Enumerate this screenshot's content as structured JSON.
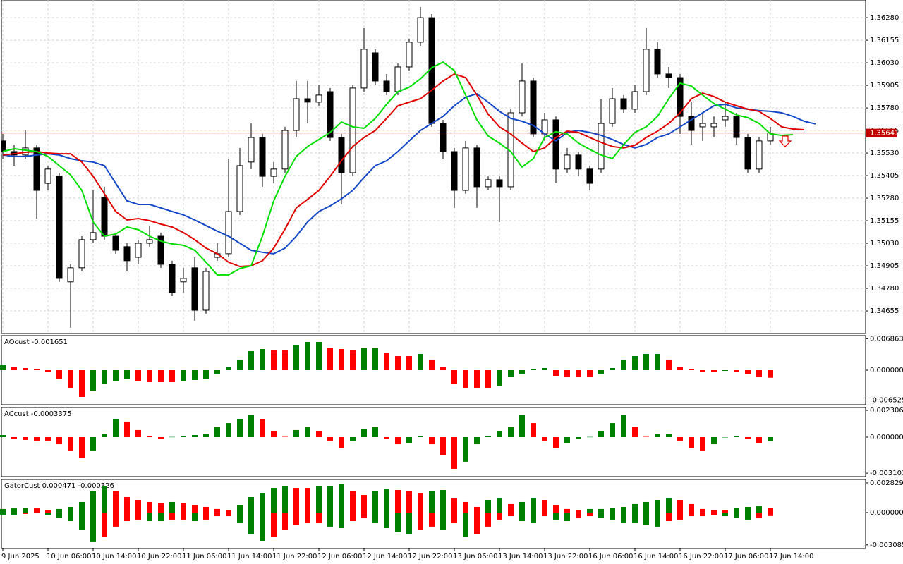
{
  "chart_data": [
    {
      "type": "candlestick",
      "categories": [
        "9 Jun 2025",
        null,
        null,
        null,
        "10 Jun 06:00",
        null,
        null,
        null,
        "10 Jun 14:00",
        null,
        null,
        null,
        "10 Jun 22:00",
        null,
        null,
        null,
        "11 Jun 06:00",
        null,
        null,
        null,
        "11 Jun 14:00",
        null,
        null,
        null,
        "11 Jun 22:00",
        null,
        null,
        null,
        "12 Jun 06:00",
        null,
        null,
        null,
        "12 Jun 14:00",
        null,
        null,
        null,
        "12 Jun 22:00",
        null,
        null,
        null,
        "13 Jun 06:00",
        null,
        null,
        null,
        "13 Jun 14:00",
        null,
        null,
        null,
        "13 Jun 22:00",
        null,
        null,
        null,
        "16 Jun 06:00",
        null,
        null,
        null,
        "16 Jun 14:00",
        null,
        null,
        null,
        "16 Jun 22:00",
        null,
        null,
        null,
        "17 Jun 06:00",
        null,
        null,
        null,
        "17 Jun 14:00",
        null,
        null,
        null,
        null
      ],
      "open": [
        1.35597,
        1.35538,
        1.35519,
        1.35558,
        1.35362,
        1.35401,
        1.34816,
        1.34894,
        1.3505,
        1.35284,
        1.35069,
        1.35011,
        1.34952,
        1.3503,
        1.35069,
        1.34913,
        1.34816,
        1.34894,
        1.34659,
        1.34952,
        1.34972,
        1.35206,
        1.3548,
        1.35616,
        1.35401,
        1.35441,
        1.35655,
        1.35831,
        1.35812,
        1.3587,
        1.35616,
        1.35421,
        1.3589,
        1.36085,
        1.35929,
        1.3587,
        1.36007,
        1.36144,
        1.3628,
        1.35694,
        1.35538,
        1.35323,
        1.35558,
        1.35343,
        1.35382,
        1.35343,
        1.35753,
        1.35929,
        1.35636,
        1.35714,
        1.35441,
        1.35519,
        1.35441,
        1.35441,
        1.35694,
        1.35831,
        1.35773,
        1.3587,
        1.36105,
        1.35968,
        1.35948,
        1.35733,
        1.35675,
        1.35675,
        1.35714,
        1.35733,
        1.35616,
        1.35441,
        1.35597,
        null,
        null,
        null,
        null
      ],
      "high": [
        1.35636,
        1.35577,
        1.35655,
        1.35577,
        1.3546,
        1.35421,
        1.34913,
        1.35069,
        1.35323,
        1.35343,
        1.35089,
        1.3503,
        1.3505,
        1.35128,
        1.35089,
        1.34933,
        1.34894,
        1.34952,
        1.34894,
        1.3503,
        1.35499,
        1.35558,
        1.35694,
        1.35636,
        1.3548,
        1.35675,
        1.35929,
        1.35929,
        1.35909,
        1.3589,
        1.35636,
        1.35909,
        1.36222,
        1.36105,
        1.35968,
        1.36026,
        1.36163,
        1.36339,
        1.363,
        1.35714,
        1.35558,
        1.35597,
        1.35577,
        1.35401,
        1.35401,
        1.35773,
        1.36026,
        1.35948,
        1.35753,
        1.35733,
        1.35558,
        1.35538,
        1.3546,
        1.35831,
        1.3589,
        1.35851,
        1.35909,
        1.36222,
        1.36144,
        1.36007,
        1.35968,
        1.35812,
        1.35753,
        1.35733,
        1.35812,
        1.35753,
        1.35636,
        1.35616,
        1.35675,
        null,
        null,
        null,
        null
      ],
      "low": [
        1.35499,
        1.3546,
        1.35499,
        1.35167,
        1.35323,
        1.34816,
        1.34562,
        1.34874,
        1.3503,
        1.3505,
        1.34972,
        1.34874,
        1.34913,
        1.35011,
        1.34894,
        1.34737,
        1.34757,
        1.34601,
        1.3464,
        1.34933,
        1.34952,
        1.35187,
        1.35441,
        1.35343,
        1.35362,
        1.35421,
        1.35616,
        1.35694,
        1.35792,
        1.35597,
        1.35245,
        1.35401,
        1.3587,
        1.35909,
        1.35851,
        1.35851,
        1.35987,
        1.36124,
        1.35675,
        1.35499,
        1.35226,
        1.35304,
        1.35226,
        1.35323,
        1.35148,
        1.35323,
        1.35733,
        1.35616,
        1.35597,
        1.35362,
        1.35421,
        1.35401,
        1.35323,
        1.35421,
        1.35675,
        1.35753,
        1.35753,
        1.35851,
        1.35948,
        1.3589,
        1.35636,
        1.35577,
        1.35597,
        1.35616,
        1.35675,
        1.35577,
        1.35421,
        1.35421,
        1.35577,
        null,
        null,
        null,
        null
      ],
      "close": [
        1.35538,
        1.35519,
        1.35558,
        1.35323,
        1.35441,
        1.34835,
        1.34894,
        1.3505,
        1.35089,
        1.35069,
        1.34991,
        1.34933,
        1.3503,
        1.3505,
        1.34913,
        1.34757,
        1.34835,
        1.34659,
        1.34874,
        1.34972,
        1.35206,
        1.3546,
        1.35616,
        1.35401,
        1.35441,
        1.35655,
        1.35831,
        1.35812,
        1.35851,
        1.35616,
        1.35421,
        1.3589,
        1.36105,
        1.35929,
        1.3587,
        1.36007,
        1.36144,
        1.3628,
        1.35694,
        1.35538,
        1.35323,
        1.35558,
        1.35343,
        1.35382,
        1.35343,
        1.35753,
        1.35929,
        1.35636,
        1.35714,
        1.35441,
        1.35519,
        1.35441,
        1.35362,
        1.35694,
        1.35831,
        1.35773,
        1.3587,
        1.36105,
        1.35968,
        1.35948,
        1.35733,
        1.35655,
        1.35694,
        1.35694,
        1.35733,
        1.35616,
        1.35441,
        1.35597,
        1.35641,
        null,
        null,
        null,
        null
      ],
      "up_color": "#ffffff",
      "down_color": "#000000",
      "series": [
        {
          "color": "#1448c8",
          "values": [
            1.35519,
            1.35511,
            1.35511,
            1.35519,
            1.35526,
            1.35519,
            1.35499,
            1.35487,
            1.3548,
            1.3546,
            1.35362,
            1.35265,
            1.35245,
            1.35245,
            1.35226,
            1.35206,
            1.35187,
            1.35159,
            1.35128,
            1.35097,
            1.35069,
            1.3503,
            1.34991,
            1.3498,
            1.34972,
            1.35003,
            1.35069,
            1.35148,
            1.35206,
            1.35237,
            1.35276,
            1.35323,
            1.35394,
            1.3546,
            1.35487,
            1.35538,
            1.35597,
            1.35655,
            1.35694,
            1.35733,
            1.35792,
            1.35839,
            1.35858,
            1.35812,
            1.35761,
            1.35722,
            1.35706,
            1.35683,
            1.35636,
            1.35597,
            1.35644,
            1.35655,
            1.35644,
            1.35628,
            1.35605,
            1.35577,
            1.35558,
            1.35577,
            1.35616,
            1.35636,
            1.35675,
            1.35714,
            1.35753,
            1.35792,
            1.358,
            1.3578,
            1.35773,
            1.35765,
            1.35761,
            1.35753,
            1.35733,
            1.35706,
            1.35691
          ]
        },
        {
          "color": "#e00000",
          "values": [
            1.35519,
            1.35526,
            1.35534,
            1.35538,
            1.3553,
            1.35526,
            1.35526,
            1.3548,
            1.35401,
            1.35304,
            1.35206,
            1.35159,
            1.35167,
            1.35155,
            1.35136,
            1.3512,
            1.35089,
            1.3505,
            1.35003,
            1.34972,
            1.34925,
            1.34901,
            1.34905,
            1.34933,
            1.35003,
            1.35108,
            1.35226,
            1.35273,
            1.35323,
            1.35401,
            1.35487,
            1.35566,
            1.35616,
            1.35655,
            1.35722,
            1.35792,
            1.35812,
            1.35831,
            1.35878,
            1.35929,
            1.35968,
            1.35948,
            1.35851,
            1.35745,
            1.35675,
            1.35636,
            1.35585,
            1.35538,
            1.35558,
            1.35616,
            1.35651,
            1.35644,
            1.35616,
            1.35589,
            1.35566,
            1.35558,
            1.35573,
            1.35616,
            1.35651,
            1.35694,
            1.35753,
            1.35831,
            1.35862,
            1.35843,
            1.35812,
            1.35792,
            1.35773,
            1.35761,
            1.35722,
            1.35675,
            1.35663,
            1.35659,
            null
          ]
        },
        {
          "color": "#00dd00",
          "values": [
            1.35538,
            1.35554,
            1.35546,
            1.35538,
            1.35511,
            1.3546,
            1.35409,
            1.35323,
            1.35148,
            1.35069,
            1.35081,
            1.3512,
            1.35105,
            1.35069,
            1.35042,
            1.35026,
            1.35019,
            1.34991,
            1.34925,
            1.34855,
            1.34855,
            1.3489,
            1.34905,
            1.35069,
            1.35265,
            1.35401,
            1.35511,
            1.35566,
            1.35605,
            1.35644,
            1.35702,
            1.35675,
            1.35667,
            1.35722,
            1.358,
            1.3587,
            1.35894,
            1.35941,
            1.36003,
            1.36034,
            1.35987,
            1.35851,
            1.35714,
            1.35624,
            1.35585,
            1.35538,
            1.35452,
            1.35499,
            1.35616,
            1.35648,
            1.35636,
            1.35585,
            1.3555,
            1.35519,
            1.35499,
            1.35577,
            1.35644,
            1.35675,
            1.35733,
            1.35831,
            1.35917,
            1.35901,
            1.35851,
            1.35804,
            1.35773,
            1.35741,
            1.35726,
            1.35694,
            1.35636,
            1.35628,
            1.35632,
            null,
            null
          ]
        }
      ],
      "current_price": {
        "value": 1.35641,
        "label": "1.35641"
      },
      "current_price_color": "#c00000",
      "ylim": [
        1.3453,
        1.36378
      ],
      "yticks": [
        {
          "value": 1.3628,
          "label": "1.36280"
        },
        {
          "value": 1.36155,
          "label": "1.36155"
        },
        {
          "value": 1.3603,
          "label": "1.36030"
        },
        {
          "value": 1.35905,
          "label": "1.35905"
        },
        {
          "value": 1.3578,
          "label": "1.35780"
        },
        {
          "value": 1.35655,
          "label": "1.35655"
        },
        {
          "value": 1.3553,
          "label": "1.35530"
        },
        {
          "value": 1.35405,
          "label": "1.35405"
        },
        {
          "value": 1.3528,
          "label": "1.35280"
        },
        {
          "value": 1.35155,
          "label": "1.35155"
        },
        {
          "value": 1.3503,
          "label": "1.35030"
        },
        {
          "value": 1.34905,
          "label": "1.34905"
        },
        {
          "value": 1.3478,
          "label": "1.34780"
        },
        {
          "value": 1.34655,
          "label": "1.34655"
        }
      ],
      "grid": true
    },
    {
      "type": "bar",
      "title": "AOcust -0.001651",
      "up_color": "#008000",
      "down_color": "#ff0000",
      "values": [
        0.00108,
        0.00077,
        0.00046,
        0.00015,
        -0.00046,
        -0.00184,
        -0.00384,
        -0.00584,
        -0.00461,
        -0.00307,
        -0.00231,
        -0.00184,
        -0.00231,
        -0.00261,
        -0.00261,
        -0.00261,
        -0.00231,
        -0.00215,
        -0.00184,
        -0.00077,
        0.00077,
        0.00231,
        0.00415,
        0.00461,
        0.0043,
        0.0043,
        0.00538,
        0.00615,
        0.00615,
        0.00492,
        0.00461,
        0.0043,
        0.00492,
        0.00492,
        0.00384,
        0.00307,
        0.00307,
        0.00354,
        0.00231,
        0.00077,
        -0.00307,
        -0.00384,
        -0.00384,
        -0.00384,
        -0.00338,
        -0.00154,
        -0.00077,
        0.00031,
        0.00046,
        -0.00123,
        -0.00154,
        -0.00154,
        -0.00154,
        -0.00077,
        0.00046,
        0.00231,
        0.00307,
        0.00354,
        0.00354,
        0.00231,
        0.00077,
        0.00031,
        -0.00031,
        -0.00031,
        -0.00015,
        -0.00046,
        -0.00092,
        -0.00154,
        -0.001651
      ],
      "ylim": [
        -0.00753,
        0.00753
      ],
      "yticks": [
        0.006863,
        {
          "value": 0,
          "label": "0.000000"
        },
        -0.006525
      ]
    },
    {
      "type": "bar",
      "title": "ACcust -0.0003375",
      "up_color": "#008000",
      "down_color": "#ff0000",
      "values": [
        0.00018,
        -0.00018,
        -0.00024,
        -0.0003,
        -0.0003,
        -0.00061,
        -0.00121,
        -0.00182,
        -0.00121,
        0.0003,
        0.00152,
        0.00134,
        0.00061,
        0.00012,
        -0.00012,
        2e-05,
        0.00012,
        0.00018,
        0.0003,
        0.00091,
        0.00121,
        0.00152,
        0.00194,
        0.00152,
        0.00049,
        3e-05,
        0.00061,
        0.00091,
        0.00049,
        -0.0003,
        -0.00091,
        -0.0003,
        0.00073,
        0.00091,
        -0.00012,
        -0.00061,
        -0.00049,
        0.00012,
        -0.00061,
        -0.00152,
        -0.00273,
        -0.00212,
        -0.00061,
        0.00012,
        0.00049,
        0.00091,
        0.00194,
        0.00121,
        -0.0003,
        -0.00091,
        -0.00049,
        -0.00018,
        2e-05,
        0.00049,
        0.00121,
        0.00194,
        0.00091,
        3e-05,
        0.0003,
        0.0003,
        -0.0003,
        -0.00091,
        -0.00121,
        -0.00061,
        -2e-05,
        0.00012,
        -0.00012,
        -0.00049,
        -0.0003375
      ],
      "ylim": [
        -0.0034,
        0.00255
      ],
      "yticks": [
        0.0023065,
        {
          "value": 0,
          "label": "0.000000"
        },
        {
          "value": -0.003101,
          "label": "-0.0031010"
        }
      ]
    },
    {
      "type": "gator",
      "title": "GatorCust 0.000471 -0.000326",
      "up_color": "#008000",
      "down_color": "#ff0000",
      "series": [
        {
          "values": [
            0.00034,
            0.0004,
            0.00047,
            0.0004,
            0.0002,
            0.00034,
            0.00054,
            0.00101,
            0.00202,
            0.00255,
            0.00202,
            0.00148,
            0.00121,
            0.00101,
            0.00094,
            0.00101,
            0.00094,
            0.00067,
            0.00054,
            0.00034,
            0.0002,
            0.00067,
            0.00148,
            0.00188,
            0.00235,
            0.00255,
            0.00235,
            0.00235,
            0.00255,
            0.00255,
            0.00269,
            0.00202,
            0.00168,
            0.00202,
            0.00222,
            0.00215,
            0.00202,
            0.00188,
            0.00202,
            0.00215,
            0.00134,
            0.00101,
            0.00054,
            0.00121,
            0.00134,
            0.00081,
            0.00101,
            0.00134,
            0.00121,
            0.00067,
            0.00034,
            0.0002,
            0.00034,
            0.00034,
            0.00047,
            0.00054,
            0.00081,
            0.00101,
            0.00121,
            0.00134,
            0.00121,
            0.00081,
            0.00034,
            0.00027,
            0.0002,
            0.00047,
            0.00054,
            0.0006,
            0.000471
          ]
        },
        {
          "values": [
            -0.0002,
            -0.0002,
            -0.00013,
            -7e-05,
            -0.0002,
            -0.00054,
            -0.00081,
            -0.00168,
            -0.00282,
            -0.00235,
            -0.00134,
            -0.00081,
            -0.00067,
            -0.00081,
            -0.00081,
            -0.00067,
            -0.00067,
            -0.00081,
            -0.00067,
            -0.00034,
            -0.00034,
            -0.00101,
            -0.00202,
            -0.00269,
            -0.00235,
            -0.00168,
            -0.00121,
            -0.00101,
            -0.00101,
            -0.00134,
            -0.00148,
            -0.00081,
            -0.00054,
            -0.00101,
            -0.00148,
            -0.00188,
            -0.00202,
            -0.00168,
            -0.00134,
            -0.00168,
            -0.00101,
            -0.00235,
            -0.00202,
            -0.00134,
            -0.00067,
            -0.00034,
            -0.00081,
            -0.00101,
            -0.00034,
            -0.00067,
            -0.00081,
            -0.00054,
            -0.00034,
            -0.00054,
            -0.00067,
            -0.00101,
            -0.00101,
            -0.00121,
            -0.00134,
            -0.00081,
            -0.00067,
            -0.00034,
            -0.00034,
            -0.00027,
            -0.00034,
            -0.00054,
            -0.00067,
            -0.00054,
            -0.000326
          ]
        }
      ],
      "ylim": [
        -0.00343,
        0.00316
      ],
      "yticks": [
        0.002829,
        {
          "value": 0,
          "label": "0.000000"
        },
        -0.003085
      ]
    }
  ]
}
